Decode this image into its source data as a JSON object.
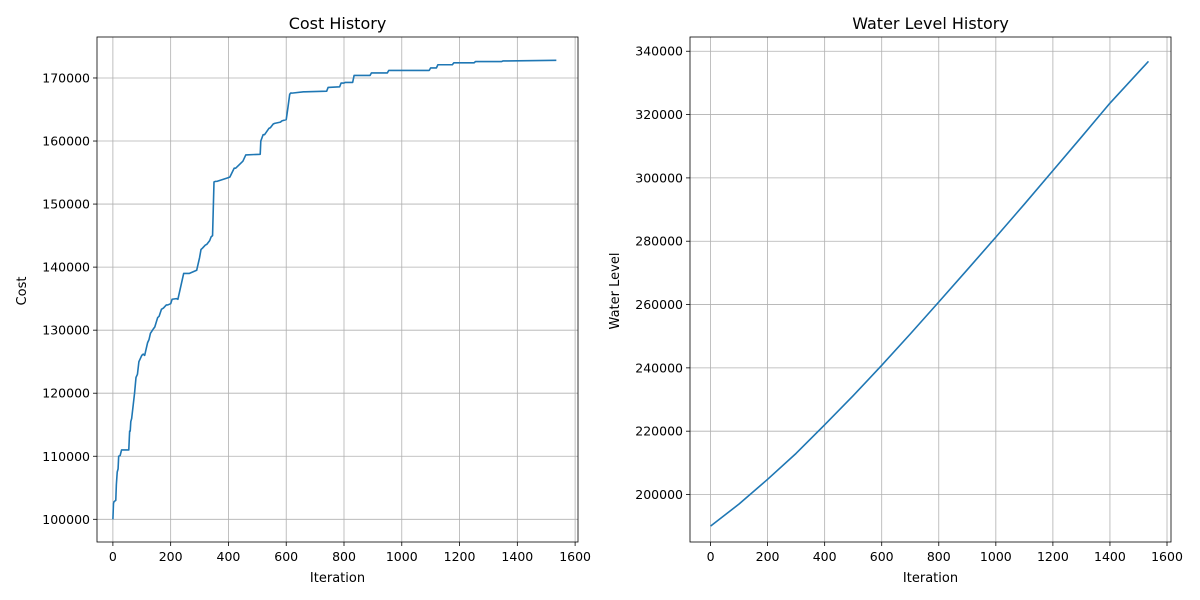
{
  "colors": {
    "series": "#1f77b4",
    "grid": "#b0b0b0",
    "background": "#ffffff"
  },
  "chart_data": [
    {
      "type": "line",
      "title": "Cost History",
      "xlabel": "Iteration",
      "ylabel": "Cost",
      "xlim": [
        -55,
        1610
      ],
      "ylim": [
        96400,
        176500
      ],
      "xticks": [
        0,
        200,
        400,
        600,
        800,
        1000,
        1200,
        1400,
        1600
      ],
      "xtick_labels": [
        "0",
        "200",
        "400",
        "600",
        "800",
        "1000",
        "1200",
        "1400",
        "1600"
      ],
      "yticks": [
        100000,
        110000,
        120000,
        130000,
        140000,
        150000,
        160000,
        170000
      ],
      "ytick_labels": [
        "100000",
        "110000",
        "120000",
        "130000",
        "140000",
        "150000",
        "160000",
        "170000"
      ],
      "grid": true,
      "series": [
        {
          "color": "#1f77b4",
          "x": [
            0,
            2,
            4,
            10,
            12,
            15,
            18,
            20,
            25,
            30,
            35,
            40,
            55,
            58,
            60,
            62,
            65,
            70,
            75,
            78,
            80,
            85,
            90,
            95,
            100,
            105,
            110,
            120,
            125,
            130,
            140,
            145,
            155,
            160,
            168,
            175,
            185,
            190,
            200,
            205,
            220,
            225,
            245,
            250,
            255,
            265,
            290,
            300,
            305,
            310,
            320,
            325,
            335,
            340,
            345,
            350,
            355,
            360,
            400,
            405,
            420,
            425,
            450,
            460,
            510,
            512,
            520,
            525,
            540,
            545,
            555,
            560,
            580,
            585,
            600,
            605,
            612,
            615,
            620,
            660,
            665,
            740,
            745,
            785,
            790,
            800,
            805,
            830,
            835,
            890,
            895,
            950,
            955,
            1095,
            1100,
            1120,
            1125,
            1175,
            1180,
            1250,
            1255,
            1345,
            1350,
            1535
          ],
          "y": [
            100000,
            102500,
            102800,
            103000,
            105500,
            107500,
            108000,
            110000,
            110100,
            111000,
            111000,
            111000,
            111000,
            114000,
            114000,
            115500,
            116000,
            118000,
            120000,
            121500,
            122500,
            123000,
            125000,
            125500,
            126000,
            126200,
            126000,
            128000,
            128500,
            129500,
            130200,
            130500,
            132000,
            132200,
            133300,
            133500,
            134000,
            134000,
            134200,
            134900,
            135000,
            134900,
            139000,
            139000,
            139000,
            139000,
            139500,
            141500,
            142800,
            143000,
            143500,
            143600,
            144200,
            144800,
            145000,
            153500,
            153600,
            153600,
            154200,
            154300,
            155700,
            155700,
            156800,
            157800,
            157900,
            160000,
            161000,
            161000,
            162000,
            162100,
            162700,
            162800,
            163000,
            163200,
            163400,
            165000,
            167400,
            167600,
            167600,
            167800,
            167800,
            167900,
            168500,
            168600,
            169200,
            169200,
            169300,
            169300,
            170400,
            170400,
            170800,
            170800,
            171200,
            171200,
            171600,
            171600,
            172100,
            172100,
            172400,
            172400,
            172600,
            172600,
            172700,
            172800
          ]
        }
      ]
    },
    {
      "type": "line",
      "title": "Water Level History",
      "xlabel": "Iteration",
      "ylabel": "Water Level",
      "xlim": [
        -72,
        1614
      ],
      "ylim": [
        185000,
        344500
      ],
      "xticks": [
        0,
        200,
        400,
        600,
        800,
        1000,
        1200,
        1400,
        1600
      ],
      "xtick_labels": [
        "0",
        "200",
        "400",
        "600",
        "800",
        "1000",
        "1200",
        "1400",
        "1600"
      ],
      "yticks": [
        200000,
        220000,
        240000,
        260000,
        280000,
        300000,
        320000,
        340000
      ],
      "ytick_labels": [
        "200000",
        "220000",
        "240000",
        "260000",
        "280000",
        "300000",
        "320000",
        "340000"
      ],
      "grid": true,
      "series": [
        {
          "color": "#1f77b4",
          "x": [
            0,
            100,
            200,
            300,
            400,
            500,
            600,
            700,
            800,
            900,
            1000,
            1100,
            1200,
            1300,
            1400,
            1535
          ],
          "y": [
            190000,
            197000,
            204800,
            213000,
            222000,
            231200,
            240800,
            250700,
            260800,
            271000,
            281300,
            291700,
            302300,
            312900,
            323600,
            336800
          ]
        }
      ]
    }
  ]
}
